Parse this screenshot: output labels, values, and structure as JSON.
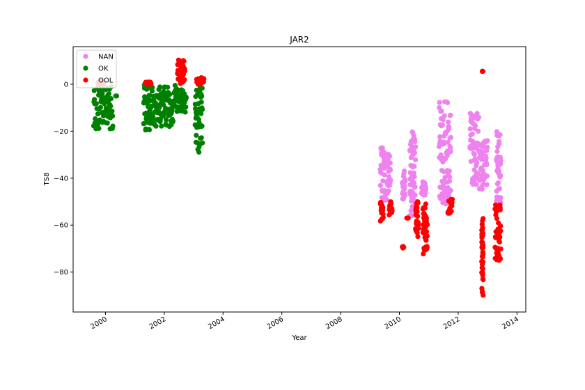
{
  "chart_data": {
    "type": "scatter",
    "title": "JAR2",
    "xlabel": "Year",
    "ylabel": "TS8",
    "xlim": [
      1998.9,
      2014.3
    ],
    "ylim": [
      -97,
      16
    ],
    "xticks": [
      2000,
      2002,
      2004,
      2006,
      2008,
      2010,
      2012,
      2014
    ],
    "xtick_labels": [
      "2000",
      "2002",
      "2004",
      "2006",
      "2008",
      "2010",
      "2012",
      "2014"
    ],
    "yticks": [
      -80,
      -60,
      -40,
      -20,
      0
    ],
    "ytick_labels": [
      "−80",
      "−60",
      "−40",
      "−20",
      "0"
    ],
    "grid": false,
    "legend_position": "top-left",
    "series": [
      {
        "name": "NAN",
        "color": "#ee82ee",
        "segments": [
          {
            "x": [
              2009.35,
              2009.7
            ],
            "y": [
              -50,
              -27
            ]
          },
          {
            "x": [
              2010.1,
              2010.2
            ],
            "y": [
              -50,
              -36
            ]
          },
          {
            "x": [
              2010.35,
              2010.55
            ],
            "y": [
              -56,
              -20
            ]
          },
          {
            "x": [
              2010.75,
              2010.9
            ],
            "y": [
              -48,
              -41
            ]
          },
          {
            "x": [
              2011.35,
              2011.75
            ],
            "y": [
              -51,
              -7
            ]
          },
          {
            "x": [
              2012.4,
              2012.7
            ],
            "y": [
              -43,
              -12
            ]
          },
          {
            "x": [
              2012.72,
              2013.0
            ],
            "y": [
              -45,
              -24
            ]
          },
          {
            "x": [
              2013.3,
              2013.45
            ],
            "y": [
              -55,
              -20
            ]
          }
        ]
      },
      {
        "name": "OK",
        "color": "#008000",
        "segments": [
          {
            "x": [
              1999.6,
              2000.25
            ],
            "y": [
              -19,
              0
            ]
          },
          {
            "x": [
              2000.35,
              2000.38
            ],
            "y": [
              -5,
              -5
            ]
          },
          {
            "x": [
              2001.3,
              2001.5
            ],
            "y": [
              -20,
              0
            ]
          },
          {
            "x": [
              2001.5,
              2002.3
            ],
            "y": [
              -18,
              0
            ]
          },
          {
            "x": [
              2002.3,
              2002.75
            ],
            "y": [
              -12,
              0
            ]
          },
          {
            "x": [
              2003.05,
              2003.3
            ],
            "y": [
              -29,
              0
            ]
          }
        ]
      },
      {
        "name": "OOL",
        "color": "#ff0000",
        "segments": [
          {
            "x": [
              1999.75,
              1999.95
            ],
            "y": [
              0,
              1.5
            ]
          },
          {
            "x": [
              2001.35,
              2001.55
            ],
            "y": [
              0,
              1
            ]
          },
          {
            "x": [
              2002.45,
              2002.7
            ],
            "y": [
              0,
              11
            ]
          },
          {
            "x": [
              2003.1,
              2003.35
            ],
            "y": [
              0,
              3
            ]
          },
          {
            "x": [
              2009.35,
              2009.45
            ],
            "y": [
              -59,
              -50
            ]
          },
          {
            "x": [
              2009.65,
              2009.75
            ],
            "y": [
              -56,
              -50
            ]
          },
          {
            "x": [
              2010.1,
              2010.15
            ],
            "y": [
              -70,
              -69
            ]
          },
          {
            "x": [
              2010.25,
              2010.3
            ],
            "y": [
              -57,
              -57
            ]
          },
          {
            "x": [
              2010.55,
              2010.65
            ],
            "y": [
              -66,
              -50
            ]
          },
          {
            "x": [
              2010.8,
              2010.95
            ],
            "y": [
              -73,
              -50
            ]
          },
          {
            "x": [
              2011.65,
              2011.8
            ],
            "y": [
              -55,
              -49
            ]
          },
          {
            "x": [
              2012.8,
              2012.85
            ],
            "y": [
              -92,
              -57
            ]
          },
          {
            "x": [
              2012.82,
              2012.84
            ],
            "y": [
              5.5,
              5.5
            ]
          },
          {
            "x": [
              2013.25,
              2013.45
            ],
            "y": [
              -75,
              -51
            ]
          }
        ]
      }
    ]
  }
}
